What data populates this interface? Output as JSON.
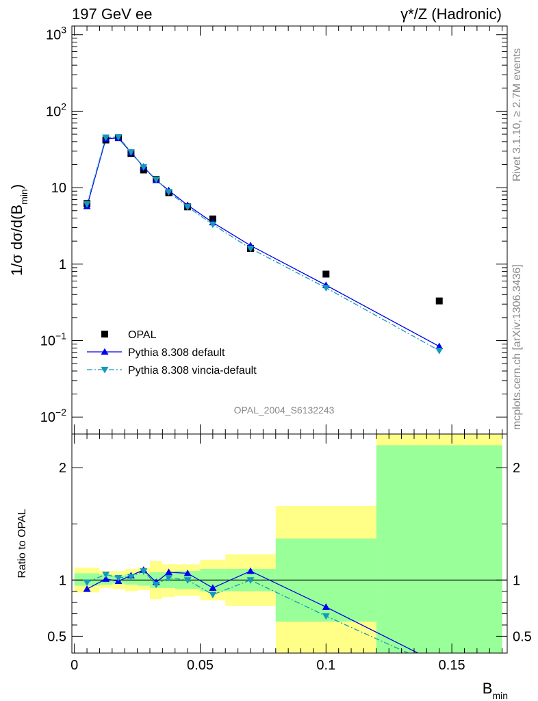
{
  "header": {
    "left_title": "197 GeV ee",
    "right_title": "γ*/Z (Hadronic)"
  },
  "side_labels": {
    "rivet": "Rivet 3.1.10, ≥ 2.7M events",
    "mcplots": "mcplots.cern.ch [arXiv:1306.3436]"
  },
  "analysis_id": "OPAL_2004_S6132243",
  "chart_data": [
    {
      "type": "scatter",
      "panel": "main",
      "ylabel": "1/σ dσ/d(B_min)",
      "yscale": "log",
      "ylim": [
        0.006,
        1300
      ],
      "ytick_labels": [
        "10^-2",
        "10^-1",
        "1",
        "10",
        "10^2",
        "10^3"
      ],
      "legend_position": "lower-left",
      "x": [
        0.005,
        0.0125,
        0.0175,
        0.0225,
        0.0275,
        0.0325,
        0.0375,
        0.045,
        0.055,
        0.07,
        0.1,
        0.145
      ],
      "series": [
        {
          "name": "OPAL",
          "color": "#000000",
          "marker": "square",
          "values": [
            6.2,
            42.0,
            45.0,
            28.0,
            17.0,
            12.8,
            8.6,
            5.6,
            3.9,
            1.6,
            0.74,
            0.33
          ]
        },
        {
          "name": "Pythia 8.308 default",
          "color": "#0000ee",
          "marker": "triangle-up",
          "line": "solid",
          "values": [
            5.7,
            43.5,
            44.5,
            28.8,
            18.7,
            12.5,
            9.2,
            5.9,
            3.5,
            1.75,
            0.53,
            0.084
          ]
        },
        {
          "name": "Pythia 8.308 vincia-default",
          "color": "#1599bb",
          "marker": "triangle-down",
          "line": "dashdot",
          "values": [
            6.1,
            45.5,
            46.0,
            29.3,
            18.6,
            12.8,
            8.8,
            5.6,
            3.3,
            1.6,
            0.49,
            0.074
          ]
        }
      ]
    },
    {
      "type": "line",
      "panel": "ratio",
      "ylabel": "Ratio to OPAL",
      "xlabel": "B_min",
      "xlim": [
        -0.001,
        0.172
      ],
      "ylim": [
        0.35,
        2.3
      ],
      "xtick_labels": [
        "0",
        "0.05",
        "0.1",
        "0.15"
      ],
      "ytick_labels": [
        "0.5",
        "1",
        "2"
      ],
      "reference_line": 1,
      "uncertainty_bands": {
        "bin_edges": [
          0.0,
          0.01,
          0.015,
          0.02,
          0.025,
          0.03,
          0.035,
          0.04,
          0.05,
          0.06,
          0.08,
          0.12,
          0.17
        ],
        "stat_color": "#99ff99",
        "total_color": "#ffff88",
        "stat_lo": [
          0.95,
          0.96,
          0.97,
          0.96,
          0.95,
          0.93,
          0.93,
          0.92,
          0.9,
          0.9,
          0.63,
          0.35
        ],
        "stat_hi": [
          1.06,
          1.05,
          1.04,
          1.05,
          1.06,
          1.07,
          1.07,
          1.08,
          1.1,
          1.1,
          1.37,
          2.2
        ],
        "total_lo": [
          0.89,
          0.93,
          0.92,
          0.9,
          0.91,
          0.83,
          0.85,
          0.86,
          0.82,
          0.77,
          0.35,
          0.35
        ],
        "total_hi": [
          1.11,
          1.08,
          1.08,
          1.1,
          1.11,
          1.17,
          1.14,
          1.14,
          1.18,
          1.23,
          1.66,
          2.3
        ]
      },
      "x": [
        0.005,
        0.0125,
        0.0175,
        0.0225,
        0.0275,
        0.0325,
        0.0375,
        0.045,
        0.055,
        0.07,
        0.1,
        0.145
      ],
      "series": [
        {
          "name": "Pythia 8.308 default",
          "color": "#0000ee",
          "marker": "triangle-up",
          "line": "solid",
          "values": [
            0.92,
            1.01,
            0.99,
            1.04,
            1.09,
            0.98,
            1.07,
            1.06,
            0.93,
            1.08,
            0.76,
            0.255
          ]
        },
        {
          "name": "Pythia 8.308 vincia-default",
          "color": "#1599bb",
          "marker": "triangle-down",
          "line": "dashdot",
          "values": [
            0.98,
            1.05,
            1.02,
            1.03,
            1.08,
            0.96,
            1.02,
            1.0,
            0.87,
            1.0,
            0.68,
            0.225
          ]
        }
      ]
    }
  ]
}
